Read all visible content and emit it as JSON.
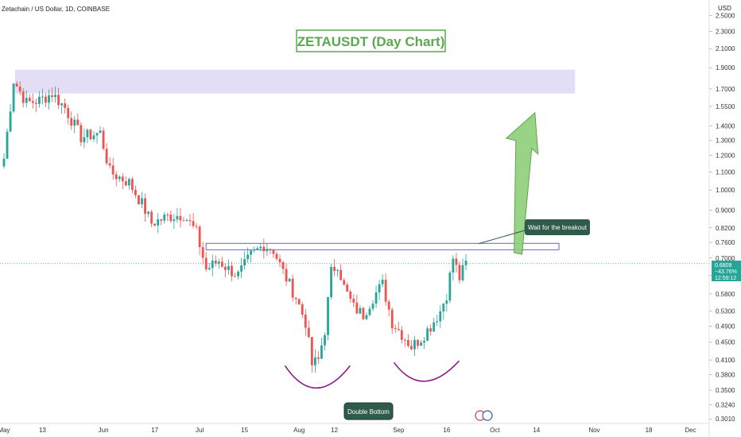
{
  "header": {
    "symbol_line": "Zetachain / US Dollar, 1D, COINBASE",
    "currency": "USD"
  },
  "colors": {
    "up": "#26a69a",
    "down": "#ef5350",
    "accent": "#5aa84f",
    "zone": "#d9d2f2",
    "resistance_line": "#6b5fd6",
    "curve": "#8b1c8b",
    "callout_bg": "#2f5b4b",
    "price_tag": "#26a69a"
  },
  "chart_data": {
    "type": "candlestick",
    "title": "ZETAUSDT (Day Chart)",
    "xlabel": "",
    "ylabel": "",
    "y_scale": "log",
    "ylim": [
      0.3,
      2.6
    ],
    "yticks": [
      "2.5000",
      "2.3000",
      "2.1000",
      "1.9000",
      "1.7000",
      "1.5500",
      "1.4000",
      "1.3000",
      "1.2000",
      "1.1000",
      "1.0000",
      "0.9000",
      "0.8200",
      "0.7600",
      "0.7000",
      "0.6400",
      "0.5800",
      "0.5300",
      "0.4900",
      "0.4500",
      "0.4100",
      "0.3800",
      "0.3500",
      "0.3240",
      "0.3010"
    ],
    "xticks": [
      {
        "label": "May",
        "date": "2024-05-01"
      },
      {
        "label": "13",
        "date": "2024-05-13"
      },
      {
        "label": "Jun",
        "date": "2024-06-01"
      },
      {
        "label": "17",
        "date": "2024-06-17"
      },
      {
        "label": "Jul",
        "date": "2024-07-01"
      },
      {
        "label": "15",
        "date": "2024-07-15"
      },
      {
        "label": "Aug",
        "date": "2024-08-01"
      },
      {
        "label": "12",
        "date": "2024-08-12"
      },
      {
        "label": "Sep",
        "date": "2024-09-01"
      },
      {
        "label": "16",
        "date": "2024-09-16"
      },
      {
        "label": "Oct",
        "date": "2024-10-01"
      },
      {
        "label": "14",
        "date": "2024-10-14"
      },
      {
        "label": "Nov",
        "date": "2024-11-01"
      },
      {
        "label": "18",
        "date": "2024-11-18"
      },
      {
        "label": "Dec",
        "date": "2024-12-01"
      }
    ],
    "close_series": [
      [
        "2024-05-01",
        1.18
      ],
      [
        "2024-05-04",
        1.78
      ],
      [
        "2024-05-08",
        1.58
      ],
      [
        "2024-05-12",
        1.6
      ],
      [
        "2024-05-16",
        1.66
      ],
      [
        "2024-05-20",
        1.54
      ],
      [
        "2024-05-25",
        1.32
      ],
      [
        "2024-05-31",
        1.35
      ],
      [
        "2024-06-03",
        1.1
      ],
      [
        "2024-06-09",
        1.04
      ],
      [
        "2024-06-13",
        0.93
      ],
      [
        "2024-06-16",
        0.84
      ],
      [
        "2024-06-21",
        0.87
      ],
      [
        "2024-06-26",
        0.88
      ],
      [
        "2024-06-30",
        0.8
      ],
      [
        "2024-07-03",
        0.66
      ],
      [
        "2024-07-07",
        0.69
      ],
      [
        "2024-07-10",
        0.66
      ],
      [
        "2024-07-13",
        0.64
      ],
      [
        "2024-07-17",
        0.71
      ],
      [
        "2024-07-21",
        0.75
      ],
      [
        "2024-07-24",
        0.73
      ],
      [
        "2024-07-27",
        0.65
      ],
      [
        "2024-07-31",
        0.57
      ],
      [
        "2024-08-03",
        0.5
      ],
      [
        "2024-08-05",
        0.4
      ],
      [
        "2024-08-07",
        0.41
      ],
      [
        "2024-08-09",
        0.48
      ],
      [
        "2024-08-11",
        0.65
      ],
      [
        "2024-08-13",
        0.68
      ],
      [
        "2024-08-15",
        0.6
      ],
      [
        "2024-08-18",
        0.54
      ],
      [
        "2024-08-21",
        0.52
      ],
      [
        "2024-08-24",
        0.57
      ],
      [
        "2024-08-27",
        0.61
      ],
      [
        "2024-08-30",
        0.5
      ],
      [
        "2024-09-02",
        0.47
      ],
      [
        "2024-09-05",
        0.44
      ],
      [
        "2024-09-08",
        0.46
      ],
      [
        "2024-09-11",
        0.49
      ],
      [
        "2024-09-14",
        0.53
      ],
      [
        "2024-09-16",
        0.58
      ],
      [
        "2024-09-18",
        0.7
      ],
      [
        "2024-09-20",
        0.63
      ],
      [
        "2024-09-22",
        0.68
      ]
    ],
    "annotations": {
      "resistance_zone": {
        "price_low": 1.66,
        "price_high": 1.88,
        "date_start": "2024-05-01",
        "date_end": "2024-10-26"
      },
      "neckline_box": {
        "price_low": 0.731,
        "price_high": 0.756,
        "date_start": "2024-07-03",
        "date_end": "2024-10-21"
      },
      "callout_text": "Wait for the breakout",
      "pattern_label": "Double Bottom"
    },
    "last_price": {
      "value": "0.6809",
      "change": "−43.76%",
      "countdown": "12:59:12"
    },
    "grid": false,
    "legend": "none"
  }
}
